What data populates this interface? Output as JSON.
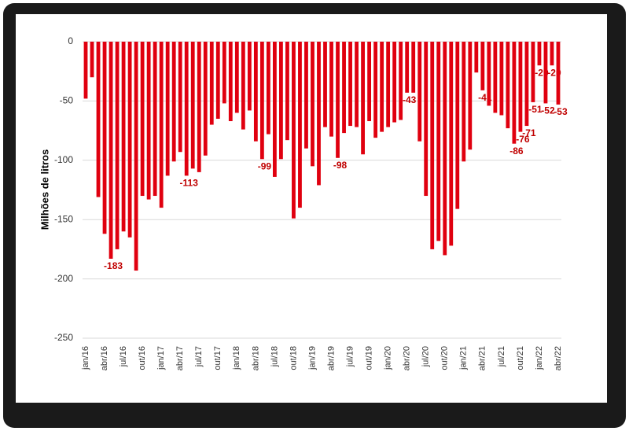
{
  "chart_data": {
    "type": "bar",
    "y_label": "Milhões de litros",
    "categories": [
      "jan/16",
      null,
      null,
      "abr/16",
      null,
      null,
      "jul/16",
      null,
      null,
      "out/16",
      null,
      null,
      "jan/17",
      null,
      null,
      "abr/17",
      null,
      null,
      "jul/17",
      null,
      null,
      "out/17",
      null,
      null,
      "jan/18",
      null,
      null,
      "abr/18",
      null,
      null,
      "jul/18",
      null,
      null,
      "out/18",
      null,
      null,
      "jan/19",
      null,
      null,
      "abr/19",
      null,
      null,
      "jul/19",
      null,
      null,
      "out/19",
      null,
      null,
      "jan/20",
      null,
      null,
      "abr/20",
      null,
      null,
      "jul/20",
      null,
      null,
      "out/20",
      null,
      null,
      "jan/21",
      null,
      null,
      "abr/21",
      null,
      null,
      "jul/21",
      null,
      null,
      "out/21",
      null,
      null,
      "jan/22",
      null,
      null,
      "abr/22"
    ],
    "values": [
      -48,
      -30,
      -131,
      -162,
      -183,
      -175,
      -160,
      -165,
      -193,
      -130,
      -133,
      -130,
      -140,
      -113,
      -101,
      -93,
      -113,
      -107,
      -110,
      -96,
      -70,
      -65,
      -52,
      -67,
      -60,
      -74,
      -58,
      -84,
      -99,
      -78,
      -114,
      -99,
      -83,
      -149,
      -140,
      -90,
      -105,
      -121,
      -72,
      -80,
      -98,
      -77,
      -71,
      -72,
      -95,
      -67,
      -81,
      -76,
      -72,
      -68,
      -66,
      -43,
      -43,
      -84,
      -130,
      -175,
      -168,
      -180,
      -172,
      -141,
      -101,
      -91,
      -26,
      -41,
      -54,
      -60,
      -62,
      -73,
      -86,
      -76,
      -71,
      -51,
      -20,
      -52,
      -20,
      -53
    ],
    "value_labels": [
      null,
      null,
      null,
      null,
      "-183",
      null,
      null,
      null,
      null,
      null,
      null,
      null,
      null,
      null,
      null,
      null,
      "-113",
      null,
      null,
      null,
      null,
      null,
      null,
      null,
      null,
      null,
      null,
      null,
      "-99",
      null,
      null,
      null,
      null,
      null,
      null,
      null,
      null,
      null,
      null,
      null,
      "-98",
      null,
      null,
      null,
      null,
      null,
      null,
      null,
      null,
      null,
      null,
      "-43",
      null,
      null,
      null,
      null,
      null,
      null,
      null,
      null,
      null,
      null,
      null,
      "-41",
      null,
      null,
      null,
      null,
      "-86",
      "-76",
      "-71",
      "-51",
      "-20",
      "-52",
      "-20",
      "-53"
    ],
    "color": "#e0000f",
    "ylim": [
      -250,
      0
    ],
    "yticks": [
      -250,
      -200,
      -150,
      -100,
      -50,
      0
    ],
    "grid": true
  }
}
